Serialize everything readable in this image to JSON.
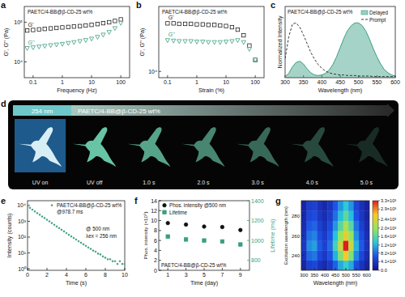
{
  "chart_data": [
    {
      "panel": "a",
      "type": "scatter",
      "title": "PAETC/4-BB@β-CD-25 wt%",
      "x_label": "Frequency (Hz)",
      "y_label": "G', G'' (Pa)",
      "log": true,
      "x": [
        0.063,
        0.1,
        0.16,
        0.25,
        0.4,
        0.63,
        1,
        1.6,
        2.5,
        4,
        6.3,
        10,
        16,
        25,
        40,
        63,
        100
      ],
      "xlim": [
        0.05,
        200
      ],
      "xticks": [
        0.1,
        1,
        10,
        100
      ],
      "ylim": [
        4000,
        250000
      ],
      "yticks": [
        {
          "value": 10000,
          "label": "10⁴"
        },
        {
          "value": 100000,
          "label": "10⁵"
        }
      ],
      "series": [
        {
          "name": "G'",
          "color": "#222222",
          "marker": "square_open",
          "values": [
            62000,
            64000,
            66000,
            68000,
            70000,
            72000,
            74000,
            76000,
            78000,
            80000,
            83000,
            86000,
            90000,
            95000,
            100000,
            108000,
            118000
          ]
        },
        {
          "name": "G''",
          "color": "#3a9e82",
          "marker": "triangle_open",
          "values": [
            22000,
            23000,
            24000,
            25000,
            26000,
            27000,
            28000,
            29500,
            31000,
            33000,
            35000,
            38000,
            42000,
            48000,
            56000,
            70000,
            95000
          ]
        }
      ]
    },
    {
      "panel": "b",
      "type": "scatter",
      "title": "PAETC/4-BB@β-CD-25 wt%",
      "x_label": "Strain (%)",
      "y_label": "G', G'' (Pa)",
      "log": true,
      "x": [
        0.1,
        0.16,
        0.25,
        0.4,
        0.63,
        1,
        1.6,
        2.5,
        4,
        6.3,
        10,
        16,
        25,
        40,
        63,
        100
      ],
      "xlim": [
        0.05,
        200
      ],
      "xticks": [
        0.1,
        1,
        10,
        100
      ],
      "ylim": [
        8000,
        100000
      ],
      "yticks": [
        {
          "value": 10000,
          "label": "10⁴"
        }
      ],
      "series": [
        {
          "name": "G'",
          "color": "#222222",
          "marker": "square_open",
          "values": [
            55000,
            55000,
            54000,
            54000,
            54000,
            53000,
            53000,
            52000,
            52000,
            51000,
            50000,
            48000,
            44000,
            36000,
            25000,
            15000
          ]
        },
        {
          "name": "G''",
          "color": "#3a9e82",
          "marker": "triangle_open",
          "values": [
            30000,
            29500,
            29000,
            29000,
            29000,
            28500,
            28500,
            28000,
            28000,
            28000,
            28500,
            29000,
            30000,
            28000,
            22000,
            15000
          ]
        }
      ]
    },
    {
      "panel": "c",
      "type": "line",
      "title": "PAETC/4-BB@β-CD-25 wt%",
      "x_label": "Wavelength (nm)",
      "y_label": "Normalized Intensity",
      "tick_labels": "x",
      "legend": "upper right",
      "x": [
        300,
        310,
        320,
        330,
        340,
        350,
        360,
        370,
        380,
        390,
        400,
        410,
        420,
        430,
        440,
        450,
        460,
        470,
        480,
        490,
        500,
        510,
        520,
        530,
        540,
        550,
        560,
        570,
        580,
        590,
        600
      ],
      "xlim": [
        300,
        600
      ],
      "xticks": [
        300,
        350,
        400,
        450,
        500,
        550,
        600
      ],
      "ylim": [
        0,
        1.3
      ],
      "series": [
        {
          "name": "Delayed",
          "type": "area",
          "color": "#3a9e82",
          "values": [
            0.02,
            0.08,
            0.2,
            0.28,
            0.3,
            0.25,
            0.16,
            0.09,
            0.05,
            0.04,
            0.05,
            0.08,
            0.14,
            0.24,
            0.38,
            0.55,
            0.72,
            0.86,
            0.95,
            1.0,
            1.0,
            0.95,
            0.85,
            0.7,
            0.53,
            0.38,
            0.25,
            0.15,
            0.09,
            0.05,
            0.03
          ]
        },
        {
          "name": "Prompt",
          "type": "line",
          "line_style": "dashed",
          "color": "#222222",
          "values": [
            0.35,
            0.75,
            0.98,
            1.0,
            0.92,
            0.78,
            0.62,
            0.46,
            0.34,
            0.24,
            0.17,
            0.12,
            0.09,
            0.07,
            0.06,
            0.05,
            0.05,
            0.04,
            0.04,
            0.04,
            0.03,
            0.03,
            0.03,
            0.03,
            0.02,
            0.02,
            0.02,
            0.02,
            0.02,
            0.02,
            0.02
          ]
        }
      ]
    },
    {
      "panel": "d",
      "type": "photo_sequence",
      "title": "PAETC/4-BB@β-CD-25 wt%",
      "annotations": [
        "254 nm"
      ],
      "categories": [
        "UV on",
        "UV off",
        "1.0 s",
        "2.0 s",
        "3.0 s",
        "4.0 s",
        "5.0 s"
      ]
    },
    {
      "panel": "e",
      "type": "scatter",
      "x_label": "Time (s)",
      "y_label": "Intensity (counts)",
      "log": "y",
      "legend": "upper right",
      "annotations": [
        "@978.7 ms",
        "@ 500 nm",
        "λex = 256 nm"
      ],
      "x": [
        0,
        0.25,
        0.5,
        0.75,
        1,
        1.25,
        1.5,
        1.75,
        2,
        2.25,
        2.5,
        2.75,
        3,
        3.25,
        3.5,
        3.75,
        4,
        4.25,
        4.5,
        4.75,
        5,
        5.25,
        5.5,
        5.75,
        6,
        6.25,
        6.5,
        6.75,
        7,
        7.25,
        7.5,
        7.75,
        8,
        8.25,
        8.5,
        8.75,
        9,
        9.25,
        9.5,
        9.75,
        10
      ],
      "xlim": [
        0,
        10
      ],
      "xticks": [
        0,
        2,
        4,
        6,
        8,
        10
      ],
      "ylim": [
        0.8,
        20000
      ],
      "yticks": [
        {
          "value": 1,
          "label": "10⁰"
        },
        {
          "value": 10,
          "label": "10¹"
        },
        {
          "value": 100,
          "label": "10²"
        },
        {
          "value": 1000,
          "label": "10³"
        },
        {
          "value": 10000,
          "label": "10⁴"
        }
      ],
      "series": [
        {
          "name": "PAETC/4-BB@β-CD-25 wt%",
          "color": "#3a9e82",
          "marker": "dot",
          "values": [
            9000,
            7000,
            5400,
            4200,
            3300,
            2600,
            2000,
            1600,
            1250,
            980,
            770,
            600,
            470,
            370,
            290,
            230,
            180,
            140,
            110,
            88,
            70,
            55,
            44,
            35,
            28,
            22,
            18,
            14,
            12,
            9,
            8,
            6,
            5,
            4,
            4,
            3,
            3,
            2,
            3,
            2,
            2
          ]
        }
      ]
    },
    {
      "panel": "f",
      "type": "scatter",
      "title": "PAETC/4-BB@β-CD-25 wt%",
      "x_label": "Time (day)",
      "y_label": "Phos. intensity (×10⁵)",
      "y2_label": "Lifetime (ms)",
      "legend": "upper left",
      "x": [
        1,
        3,
        5,
        7,
        9
      ],
      "xlim": [
        0,
        10
      ],
      "xticks": [
        1,
        3,
        5,
        7,
        9
      ],
      "ylim": [
        0,
        14
      ],
      "yticks": [
        0,
        2,
        4,
        6,
        8,
        10,
        12,
        14
      ],
      "y2lim": [
        700,
        1400
      ],
      "y2ticks": [
        800,
        1000,
        1200,
        1400
      ],
      "series": [
        {
          "name": "Phos. intensity @500 nm",
          "color": "#111111",
          "marker": "circle",
          "values": [
            9.5,
            9.2,
            8.8,
            8.7,
            8.1
          ]
        },
        {
          "name": "Lifetime",
          "color": "#3a9e82",
          "marker": "square",
          "axis": "y2",
          "values": [
            1040,
            1010,
            1000,
            990,
            960
          ]
        }
      ]
    },
    {
      "panel": "g",
      "type": "heatmap",
      "x_label": "Wavelength (nm)",
      "y_label": "Excitation wavelength (nm)",
      "x": [
        300,
        325,
        350,
        375,
        400,
        425,
        450,
        475,
        500,
        525,
        550,
        575,
        600
      ],
      "y": [
        230,
        240,
        250,
        260,
        270,
        280,
        290
      ],
      "xlim": [
        287.5,
        612.5
      ],
      "xticks": [
        300,
        350,
        400,
        450,
        500,
        550,
        600
      ],
      "ylim": [
        225,
        295
      ],
      "yticks": [
        240,
        260,
        280
      ],
      "cells": [
        [
          200,
          500,
          550,
          350,
          250,
          400,
          750,
          1150,
          1400,
          1150,
          600,
          350,
          180
        ],
        [
          320,
          800,
          880,
          560,
          400,
          640,
          1200,
          1840,
          2600,
          1840,
          960,
          560,
          280
        ],
        [
          400,
          1000,
          1100,
          700,
          500,
          800,
          1500,
          2300,
          3300,
          2300,
          1200,
          700,
          350
        ],
        [
          340,
          850,
          940,
          600,
          430,
          680,
          1280,
          1960,
          2500,
          1960,
          1020,
          600,
          300
        ],
        [
          280,
          700,
          770,
          490,
          350,
          560,
          1050,
          1610,
          2100,
          1610,
          840,
          490,
          250
        ],
        [
          220,
          550,
          610,
          390,
          280,
          440,
          830,
          1270,
          1650,
          1270,
          660,
          390,
          190
        ],
        [
          180,
          450,
          500,
          320,
          230,
          360,
          680,
          1040,
          1350,
          1040,
          540,
          320,
          160
        ]
      ],
      "color_range": [
        0,
        3300
      ],
      "color_ticks": [
        {
          "value": 0,
          "label": "0.0"
        },
        {
          "value": 410,
          "label": "4.1×10²"
        },
        {
          "value": 820,
          "label": "8.2×10²"
        },
        {
          "value": 1200,
          "label": "1.2×10³"
        },
        {
          "value": 1600,
          "label": "1.6×10³"
        },
        {
          "value": 2000,
          "label": "2.0×10³"
        },
        {
          "value": 2400,
          "label": "2.4×10³"
        },
        {
          "value": 2900,
          "label": "2.9×10³"
        },
        {
          "value": 3300,
          "label": "3.3×10³"
        }
      ]
    }
  ]
}
